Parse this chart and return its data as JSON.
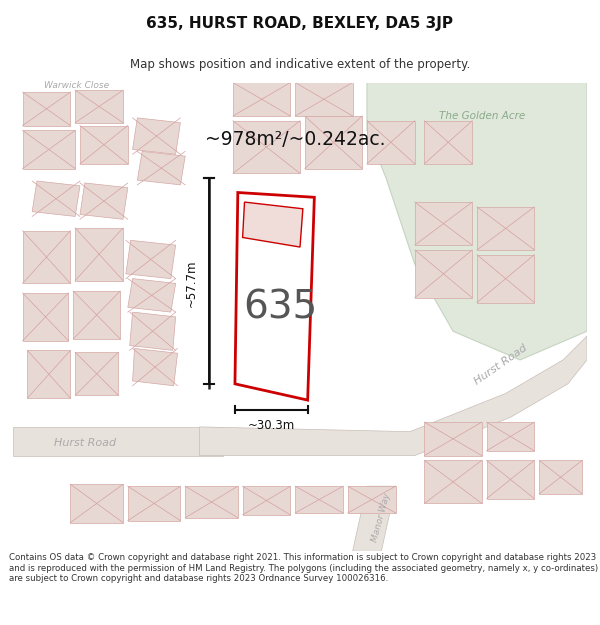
{
  "title": "635, HURST ROAD, BEXLEY, DA5 3JP",
  "subtitle": "Map shows position and indicative extent of the property.",
  "footer": "Contains OS data © Crown copyright and database right 2021. This information is subject to Crown copyright and database rights 2023 and is reproduced with the permission of HM Land Registry. The polygons (including the associated geometry, namely x, y co-ordinates) are subject to Crown copyright and database rights 2023 Ordnance Survey 100026316.",
  "area_text": "~978m²/~0.242ac.",
  "plot_number": "635",
  "dim_width": "~30.3m",
  "dim_height": "~57.7m",
  "map_bg": "#f2ede8",
  "road_fill": "#f2ede8",
  "building_fill": "#e8d8d4",
  "building_edge": "#d4a8a4",
  "green_fill": "#e0e8dc",
  "green_edge": "#c4d4c0",
  "highlight_fill": "#ffffff",
  "highlight_edge": "#cc0000",
  "title_fontsize": 11,
  "subtitle_fontsize": 8.5,
  "footer_fontsize": 6.2,
  "road_text_color": "#aaaaaa",
  "label_text_color": "#333333"
}
